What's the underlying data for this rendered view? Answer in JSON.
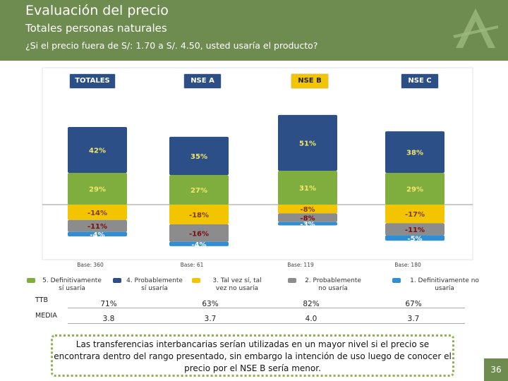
{
  "header": {
    "title": "Evaluación del precio",
    "subtitle": "Totales personas naturales",
    "question": "¿Si el precio fuera de S/: 1.70 a S/. 4.50, usted usaría el producto?"
  },
  "colors": {
    "header_bg": "#6e8c50",
    "cat5": "#7fae3e",
    "cat4": "#2c4f87",
    "cat3": "#f3c500",
    "cat2": "#8c8c8c",
    "cat1": "#2f8fd6"
  },
  "chart_data": {
    "type": "bar",
    "subtype": "diverging-stacked",
    "categories": [
      "TOTALES",
      "NSE A",
      "NSE  B",
      "NSE C"
    ],
    "bases": [
      "Base: 360",
      "Base: 61",
      "Base: 119",
      "Base: 180"
    ],
    "series": [
      {
        "name": "5. Definitivamente sí usaría",
        "values": [
          29,
          27,
          31,
          29
        ],
        "labels": [
          "29%",
          "27%",
          "31%",
          "29%"
        ]
      },
      {
        "name": "4. Probablemente sí usaría",
        "values": [
          42,
          35,
          51,
          38
        ],
        "labels": [
          "42%",
          "35%",
          "51%",
          "38%"
        ]
      },
      {
        "name": "3. Tal vez sí, tal vez no usaría",
        "values": [
          -14,
          -18,
          -8,
          -17
        ],
        "labels": [
          "-14%",
          "-18%",
          "-8%",
          "-17%"
        ]
      },
      {
        "name": "2. Probablemente no usaría",
        "values": [
          -11,
          -16,
          -8,
          -11
        ],
        "labels": [
          "-11%",
          "-16%",
          "-8%",
          "-11%"
        ]
      },
      {
        "name": "1.  Definitivamente   no usaría",
        "values": [
          -4,
          -4,
          -3,
          -5
        ],
        "labels": [
          "-4%",
          "-4%",
          "-3%",
          "-5%"
        ]
      }
    ]
  },
  "legend": [
    {
      "label_line1": "5. Definitivamente",
      "label_line2": "sí usaría"
    },
    {
      "label_line1": "4. Probablemente",
      "label_line2": "sí usaría"
    },
    {
      "label_line1": "3. Tal vez sí, tal",
      "label_line2": "vez no usaría"
    },
    {
      "label_line1": "2. Probablemente",
      "label_line2": "no usaría"
    },
    {
      "label_line1": "1.  Definitivamente   no",
      "label_line2": "usaría"
    }
  ],
  "table": {
    "rows": [
      {
        "label": "TTB",
        "values": [
          "71%",
          "63%",
          "82%",
          "67%"
        ]
      },
      {
        "label": "MEDIA",
        "values": [
          "3.8",
          "3.7",
          "4.0",
          "3.7"
        ]
      }
    ]
  },
  "note": "Las transferencias interbancarias serían utilizadas en un mayor nivel si el precio se encontrara dentro del rango presentado, sin embargo la intención de uso luego de conocer el precio por el NSE B sería menor.",
  "page_number": "36"
}
